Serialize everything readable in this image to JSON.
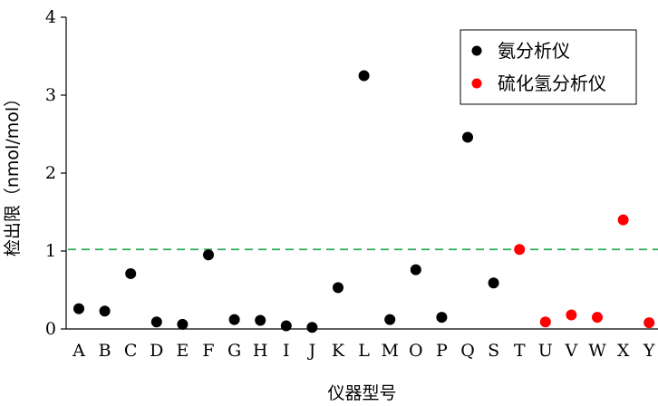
{
  "chart_data": {
    "type": "scatter",
    "xlabel": "仪器型号",
    "ylabel": "检出限（nmol/mol）",
    "categories": [
      "A",
      "B",
      "C",
      "D",
      "E",
      "F",
      "G",
      "H",
      "I",
      "J",
      "K",
      "L",
      "M",
      "O",
      "P",
      "Q",
      "S",
      "T",
      "U",
      "V",
      "W",
      "X",
      "Y"
    ],
    "ylim": [
      0,
      4
    ],
    "yticks": [
      0,
      1,
      2,
      3,
      4
    ],
    "grid": false,
    "legend_position": "top-right",
    "reference_line": {
      "y": 1.02,
      "color": "#2eaa5a",
      "style": "dashed"
    },
    "series": [
      {
        "name": "氨分析仪",
        "color": "#000000",
        "points": [
          {
            "x": "A",
            "y": 0.26
          },
          {
            "x": "B",
            "y": 0.23
          },
          {
            "x": "C",
            "y": 0.71
          },
          {
            "x": "D",
            "y": 0.09
          },
          {
            "x": "E",
            "y": 0.06
          },
          {
            "x": "F",
            "y": 0.95
          },
          {
            "x": "G",
            "y": 0.12
          },
          {
            "x": "H",
            "y": 0.11
          },
          {
            "x": "I",
            "y": 0.04
          },
          {
            "x": "J",
            "y": 0.02
          },
          {
            "x": "K",
            "y": 0.53
          },
          {
            "x": "L",
            "y": 3.25
          },
          {
            "x": "M",
            "y": 0.12
          },
          {
            "x": "O",
            "y": 0.76
          },
          {
            "x": "P",
            "y": 0.15
          },
          {
            "x": "Q",
            "y": 2.46
          },
          {
            "x": "S",
            "y": 0.59
          }
        ]
      },
      {
        "name": "硫化氢分析仪",
        "color": "#ff0000",
        "points": [
          {
            "x": "T",
            "y": 1.02
          },
          {
            "x": "U",
            "y": 0.09
          },
          {
            "x": "V",
            "y": 0.18
          },
          {
            "x": "W",
            "y": 0.15
          },
          {
            "x": "X",
            "y": 1.4
          },
          {
            "x": "Y",
            "y": 0.08
          }
        ]
      }
    ]
  }
}
